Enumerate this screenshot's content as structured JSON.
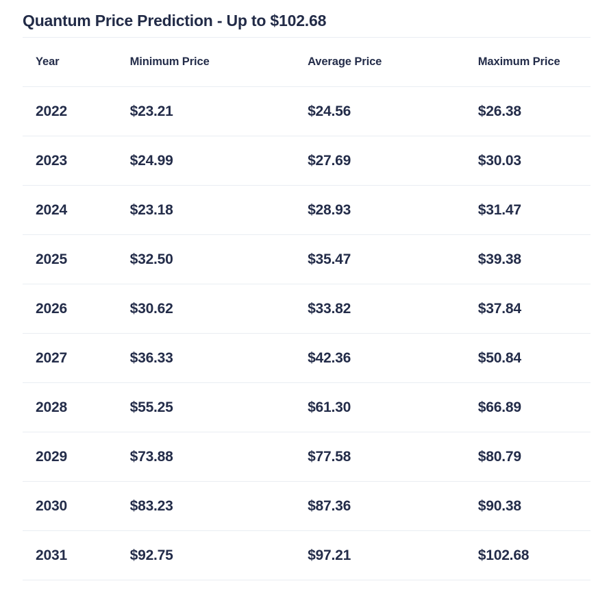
{
  "title": "Quantum Price Prediction - Up to $102.68",
  "chart_data": {
    "type": "table",
    "title": "Quantum Price Prediction - Up to $102.68",
    "columns": [
      "Year",
      "Minimum Price",
      "Average Price",
      "Maximum Price"
    ],
    "rows": [
      [
        "2022",
        "$23.21",
        "$24.56",
        "$26.38"
      ],
      [
        "2023",
        "$24.99",
        "$27.69",
        "$30.03"
      ],
      [
        "2024",
        "$23.18",
        "$28.93",
        "$31.47"
      ],
      [
        "2025",
        "$32.50",
        "$35.47",
        "$39.38"
      ],
      [
        "2026",
        "$30.62",
        "$33.82",
        "$37.84"
      ],
      [
        "2027",
        "$36.33",
        "$42.36",
        "$50.84"
      ],
      [
        "2028",
        "$55.25",
        "$61.30",
        "$66.89"
      ],
      [
        "2029",
        "$73.88",
        "$77.58",
        "$80.79"
      ],
      [
        "2030",
        "$83.23",
        "$87.36",
        "$90.38"
      ],
      [
        "2031",
        "$92.75",
        "$97.21",
        "$102.68"
      ]
    ],
    "layout": {
      "legend": "none",
      "grid": "horizontal-row-dividers"
    }
  },
  "colors": {
    "text": "#232c49",
    "title_text": "#222b47",
    "divider": "#e9edf2",
    "background": "#ffffff"
  }
}
